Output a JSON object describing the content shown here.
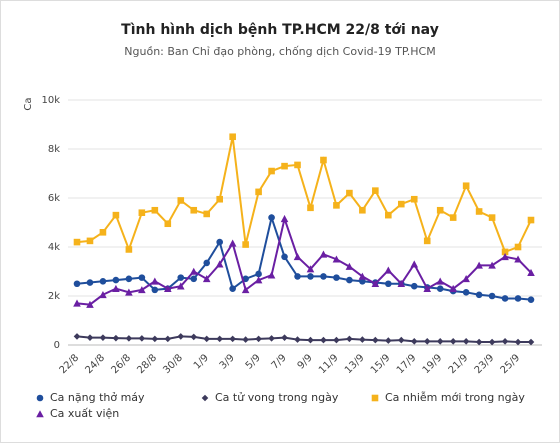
{
  "chart_data": {
    "type": "line",
    "title": "Tình hình dịch bệnh TP.HCM 22/8 tới nay",
    "subtitle": "Nguồn: Ban Chỉ đạo phòng, chống dịch Covid-19 TP.HCM",
    "y_label": "Ca",
    "categories": [
      "22/8",
      null,
      "24/8",
      null,
      "26/8",
      null,
      "28/8",
      null,
      "30/8",
      null,
      "1/9",
      null,
      "3/9",
      null,
      "5/9",
      null,
      "7/9",
      null,
      "9/9",
      null,
      "11/9",
      null,
      "13/9",
      null,
      "15/9",
      null,
      "17/9",
      null,
      "19/9",
      null,
      "21/9",
      null,
      "23/9",
      null,
      "25/9",
      null
    ],
    "ylim": [
      0,
      10000
    ],
    "yticks": [
      0,
      {
        "value": 2000,
        "label": "2k"
      },
      {
        "value": 4000,
        "label": "4k"
      },
      {
        "value": 6000,
        "label": "6k"
      },
      {
        "value": 8000,
        "label": "8k"
      },
      {
        "value": 10000,
        "label": "10k"
      }
    ],
    "grid": true,
    "legend": "bottom",
    "series": [
      {
        "name": "Ca nặng thở máy",
        "color": "#1f4e9c",
        "marker": "circle",
        "values": [
          2500,
          2550,
          2600,
          2650,
          2700,
          2750,
          2250,
          2300,
          2750,
          2700,
          3350,
          4200,
          2300,
          2700,
          2900,
          5200,
          3600,
          2800,
          2800,
          2800,
          2750,
          2650,
          2600,
          2550,
          2500,
          2500,
          2400,
          2350,
          2300,
          2200,
          2150,
          2050,
          2000,
          1900,
          1900,
          1850
        ]
      },
      {
        "name": "Ca tử vong trong ngày",
        "color": "#3d3a5c",
        "marker": "diamond",
        "values": [
          350,
          300,
          300,
          280,
          270,
          270,
          250,
          250,
          350,
          330,
          250,
          250,
          250,
          220,
          250,
          270,
          300,
          220,
          200,
          200,
          200,
          250,
          220,
          200,
          180,
          200,
          150,
          150,
          150,
          150,
          150,
          120,
          120,
          150,
          120,
          120
        ]
      },
      {
        "name": "Ca nhiễm mới trong ngày",
        "color": "#f5b21b",
        "marker": "square",
        "values": [
          4200,
          4250,
          4600,
          5300,
          3900,
          5400,
          5500,
          4950,
          5900,
          5500,
          5350,
          5950,
          8500,
          4100,
          6250,
          7100,
          7300,
          7350,
          5600,
          7550,
          5700,
          6200,
          5500,
          6300,
          5300,
          5750,
          5950,
          4250,
          5500,
          5200,
          6500,
          5450,
          5200,
          3800,
          4000,
          5100
        ]
      },
      {
        "name": "Ca xuất viện",
        "color": "#6a1fa3",
        "marker": "triangle",
        "values": [
          1700,
          1650,
          2050,
          2300,
          2150,
          2250,
          2600,
          2300,
          2400,
          3000,
          2700,
          3300,
          4150,
          2250,
          2650,
          2850,
          5150,
          3600,
          3100,
          3700,
          3500,
          3200,
          2800,
          2500,
          3050,
          2500,
          3300,
          2300,
          2600,
          2300,
          2700,
          3250,
          3250,
          3600,
          3500,
          2950
        ]
      }
    ]
  }
}
